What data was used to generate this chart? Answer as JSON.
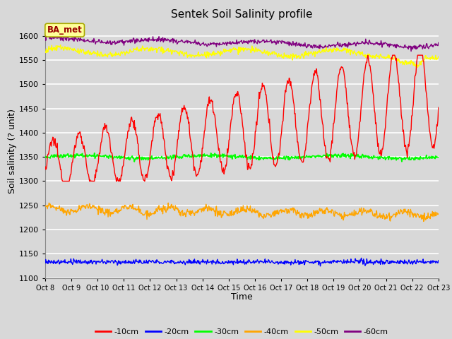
{
  "title": "Sentek Soil Salinity profile",
  "xlabel": "Time",
  "ylabel": "Soil salinity (? unit)",
  "ylim": [
    1100,
    1625
  ],
  "yticks": [
    1100,
    1150,
    1200,
    1250,
    1300,
    1350,
    1400,
    1450,
    1500,
    1550,
    1600
  ],
  "bg_color": "#d8d8d8",
  "plot_bg_color": "#d8d8d8",
  "grid_color": "white",
  "annotation_text": "BA_met",
  "annotation_bg": "#ffff99",
  "annotation_border": "#aaaa00",
  "annotation_text_color": "#990000",
  "lines": {
    "-10cm": {
      "color": "red",
      "lw": 1.0
    },
    "-20cm": {
      "color": "blue",
      "lw": 1.0
    },
    "-30cm": {
      "color": "lime",
      "lw": 1.2
    },
    "-40cm": {
      "color": "orange",
      "lw": 1.0
    },
    "-50cm": {
      "color": "yellow",
      "lw": 1.0
    },
    "-60cm": {
      "color": "purple",
      "lw": 1.0
    }
  },
  "legend_colors": [
    "red",
    "blue",
    "lime",
    "orange",
    "yellow",
    "purple"
  ],
  "legend_labels": [
    "-10cm",
    "-20cm",
    "-30cm",
    "-40cm",
    "-50cm",
    "-60cm"
  ],
  "n_points": 720,
  "xtick_labels": [
    "Oct 8",
    "Oct 9",
    "Oct 10",
    "Oct 11",
    "Oct 12",
    "Oct 13",
    "Oct 14",
    "Oct 15",
    "Oct 16",
    "Oct 17",
    "Oct 18",
    "Oct 19",
    "Oct 20",
    "Oct 21",
    "Oct 22",
    "Oct 23"
  ]
}
